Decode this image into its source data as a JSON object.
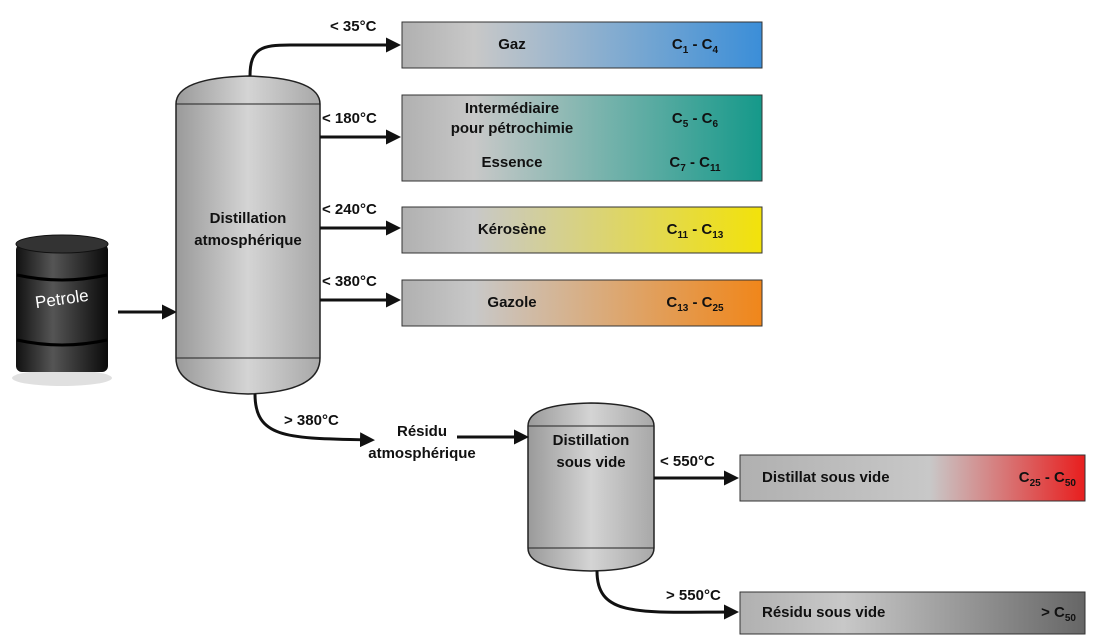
{
  "feed": {
    "label": "Petrole"
  },
  "atmospheric_column": {
    "label": [
      "Distillation",
      "atmosphérique"
    ]
  },
  "atmospheric_outputs": [
    {
      "temperature": "< 35°C",
      "products": [
        {
          "name": [
            "Gaz"
          ],
          "range": [
            {
              "text": "C"
            },
            {
              "sub": "1"
            },
            {
              "text": " - C"
            },
            {
              "sub": "4"
            }
          ]
        }
      ]
    },
    {
      "temperature": "< 180°C",
      "products": [
        {
          "name": [
            "Intermédiaire",
            "pour pétrochimie"
          ],
          "range": [
            {
              "text": "C"
            },
            {
              "sub": "5"
            },
            {
              "text": " - C"
            },
            {
              "sub": "6"
            }
          ]
        },
        {
          "name": [
            "Essence"
          ],
          "range": [
            {
              "text": "C"
            },
            {
              "sub": "7"
            },
            {
              "text": " - C"
            },
            {
              "sub": "11"
            }
          ]
        }
      ]
    },
    {
      "temperature": "< 240°C",
      "products": [
        {
          "name": [
            "Kérosène"
          ],
          "range": [
            {
              "text": "C"
            },
            {
              "sub": "11"
            },
            {
              "text": " - C"
            },
            {
              "sub": "13"
            }
          ]
        }
      ]
    },
    {
      "temperature": "< 380°C",
      "products": [
        {
          "name": [
            "Gazole"
          ],
          "range": [
            {
              "text": "C"
            },
            {
              "sub": "13"
            },
            {
              "text": " - C"
            },
            {
              "sub": "25"
            }
          ]
        }
      ]
    }
  ],
  "residue": {
    "temperature": "> 380°C",
    "label": [
      "Résidu",
      "atmosphérique"
    ]
  },
  "vacuum_column": {
    "label": [
      "Distillation",
      "sous vide"
    ]
  },
  "vacuum_outputs": [
    {
      "temperature": "< 550°C",
      "products": [
        {
          "name": [
            "Distillat sous vide"
          ],
          "range": [
            {
              "text": "C"
            },
            {
              "sub": "25"
            },
            {
              "text": " - C"
            },
            {
              "sub": "50"
            }
          ]
        }
      ]
    },
    {
      "temperature": "> 550°C",
      "products": [
        {
          "name": [
            "Résidu sous vide"
          ],
          "range": [
            {
              "text": "> C"
            },
            {
              "sub": "50"
            }
          ]
        }
      ]
    }
  ]
}
